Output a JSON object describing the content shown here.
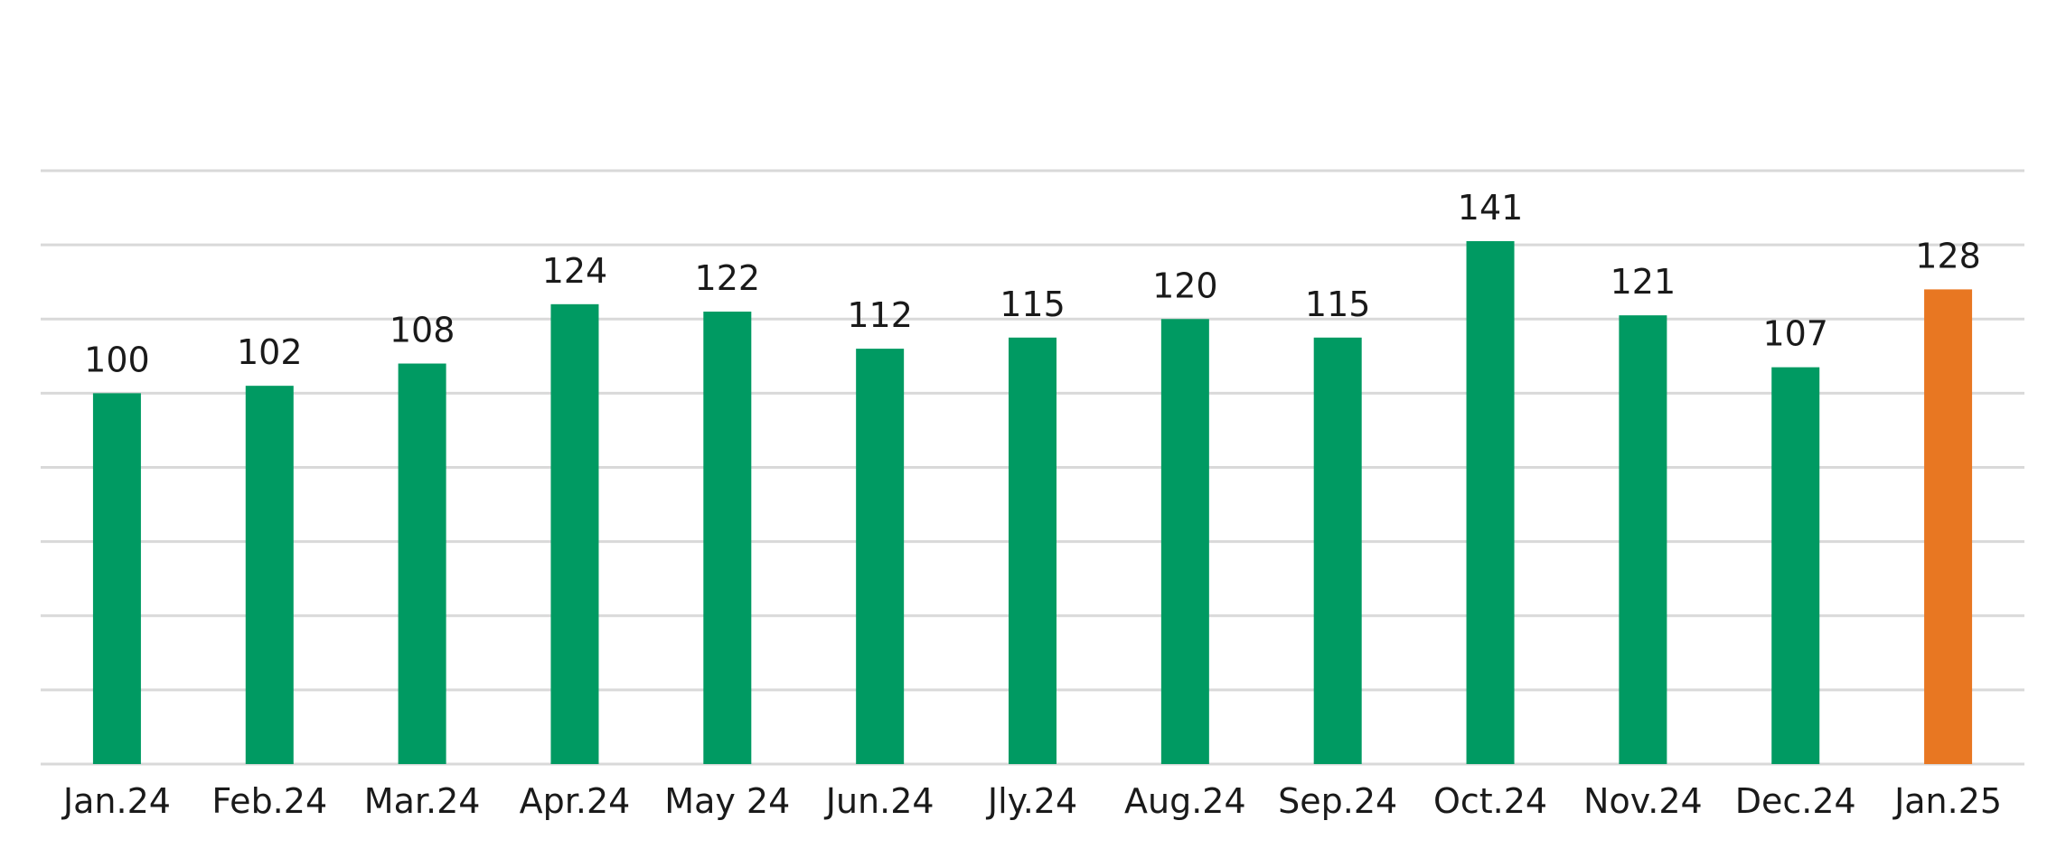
{
  "chart_data": {
    "type": "bar",
    "categories": [
      "Jan.24",
      "Feb.24",
      "Mar.24",
      "Apr.24",
      "May 24",
      "Jun.24",
      "Jly.24",
      "Aug.24",
      "Sep.24",
      "Oct.24",
      "Nov.24",
      "Dec.24",
      "Jan.25"
    ],
    "values": [
      100,
      102,
      108,
      124,
      122,
      112,
      115,
      120,
      115,
      141,
      121,
      107,
      128
    ],
    "ylim": [
      0,
      160
    ],
    "gridline_step": 20,
    "grid": true,
    "legend": "none",
    "colors": {
      "default_bar": "#009a62",
      "highlight_bar": "#e87722",
      "highlight_index": 12,
      "gridline": "#d9d9d9"
    }
  }
}
